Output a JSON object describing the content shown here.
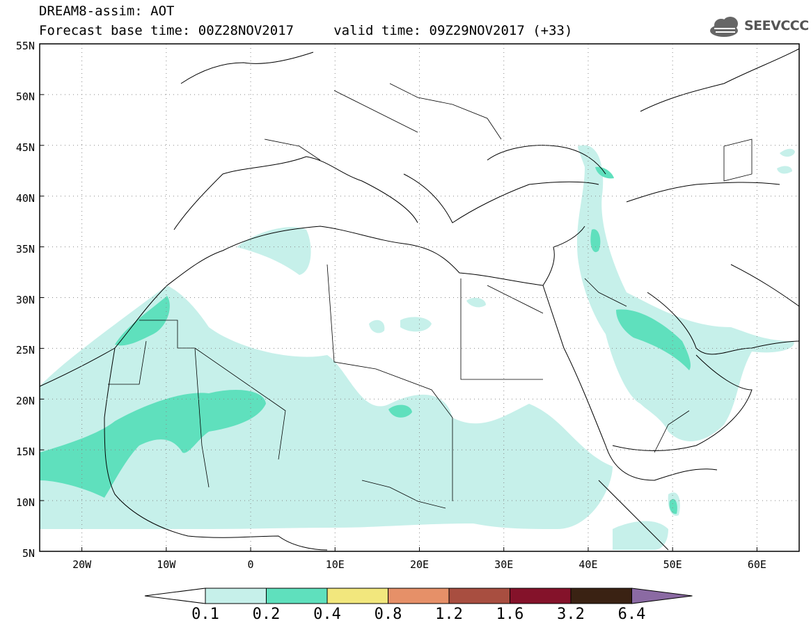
{
  "header": {
    "title_line1": "DREAM8-assim: AOT",
    "title_line2": "Forecast base time: 00Z28NOV2017     valid time: 09Z29NOV2017 (+33)",
    "logo_text": "SEEVCCC"
  },
  "map": {
    "lat_labels": [
      "55N",
      "50N",
      "45N",
      "40N",
      "35N",
      "30N",
      "25N",
      "20N",
      "15N",
      "10N",
      "5N"
    ],
    "lon_labels": [
      "20W",
      "10W",
      "0",
      "10E",
      "20E",
      "30E",
      "40E",
      "50E",
      "60E"
    ],
    "extent": {
      "lon_min": -25,
      "lon_max": 65,
      "lat_min": 5,
      "lat_max": 55
    }
  },
  "colorbar": {
    "tick_labels": [
      "0.1",
      "0.2",
      "0.4",
      "0.8",
      "1.2",
      "1.6",
      "3.2",
      "6.4"
    ],
    "colors": [
      "#ffffff",
      "#c6f0ea",
      "#5fe0bd",
      "#f2e77d",
      "#e69068",
      "#a84e40",
      "#84122a",
      "#3a2213",
      "#8b6aa3"
    ]
  }
}
